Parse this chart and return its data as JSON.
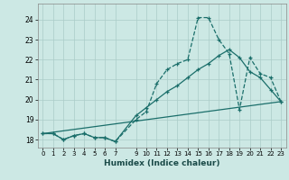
{
  "xlabel": "Humidex (Indice chaleur)",
  "bg_color": "#cce8e4",
  "grid_color": "#aaccc8",
  "line_color": "#1a6e6a",
  "xlim": [
    -0.5,
    23.5
  ],
  "ylim": [
    17.6,
    24.8
  ],
  "xticks": [
    0,
    1,
    2,
    3,
    4,
    5,
    6,
    7,
    9,
    10,
    11,
    12,
    13,
    14,
    15,
    16,
    17,
    18,
    19,
    20,
    21,
    22,
    23
  ],
  "yticks": [
    18,
    19,
    20,
    21,
    22,
    23,
    24
  ],
  "curve1_x": [
    0,
    1,
    2,
    3,
    4,
    5,
    6,
    7,
    9,
    10,
    11,
    12,
    13,
    14,
    15,
    16,
    17,
    18,
    19,
    20,
    21,
    22,
    23
  ],
  "curve1_y": [
    18.3,
    18.3,
    18.0,
    18.2,
    18.3,
    18.1,
    18.1,
    17.9,
    19.0,
    19.4,
    20.8,
    21.5,
    21.8,
    22.0,
    24.1,
    24.1,
    23.0,
    22.3,
    19.5,
    22.1,
    21.3,
    21.1,
    19.9
  ],
  "curve2_x": [
    0,
    1,
    2,
    3,
    4,
    5,
    6,
    7,
    9,
    10,
    11,
    12,
    13,
    14,
    15,
    16,
    17,
    18,
    19,
    20,
    21,
    22,
    23
  ],
  "curve2_y": [
    18.3,
    18.3,
    18.0,
    18.2,
    18.3,
    18.1,
    18.1,
    17.9,
    19.2,
    19.6,
    20.0,
    20.4,
    20.7,
    21.1,
    21.5,
    21.8,
    22.2,
    22.5,
    22.1,
    21.4,
    21.1,
    20.5,
    19.9
  ],
  "curve3_x": [
    0,
    23
  ],
  "curve3_y": [
    18.3,
    19.9
  ]
}
